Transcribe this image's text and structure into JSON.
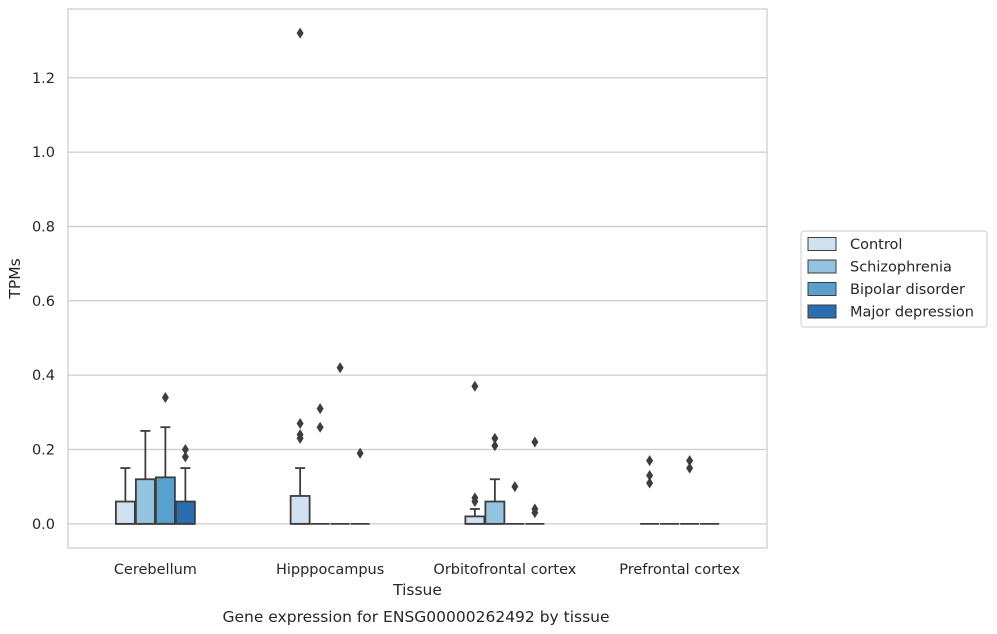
{
  "caption": "Gene expression for ENSG00000262492 by tissue",
  "chart_data": {
    "type": "box",
    "xlabel": "Tissue",
    "ylabel": "TPMs",
    "ylim": [
      -0.065,
      1.385
    ],
    "yticks": [
      0.0,
      0.2,
      0.4,
      0.6,
      0.8,
      1.0,
      1.2
    ],
    "ytick_labels": [
      "0.0",
      "0.2",
      "0.4",
      "0.6",
      "0.8",
      "1.0",
      "1.2"
    ],
    "grid": "horizontal",
    "legend_placement": "outside-right",
    "categories": [
      "Cerebellum",
      "Hipppocampus",
      "Orbitofrontal cortex",
      "Prefrontal cortex"
    ],
    "series": [
      {
        "name": "Control",
        "color": "#d0e1f2",
        "boxes": [
          {
            "q1": 0.0,
            "median": 0.0,
            "q3": 0.06,
            "whisker_low": 0.0,
            "whisker_high": 0.15,
            "outliers": []
          },
          {
            "q1": 0.0,
            "median": 0.0,
            "q3": 0.075,
            "whisker_low": 0.0,
            "whisker_high": 0.15,
            "outliers": [
              1.32,
              0.27,
              0.24,
              0.23
            ]
          },
          {
            "q1": 0.0,
            "median": 0.0,
            "q3": 0.02,
            "whisker_low": 0.0,
            "whisker_high": 0.04,
            "outliers": [
              0.37,
              0.07,
              0.06
            ]
          },
          {
            "q1": 0.0,
            "median": 0.0,
            "q3": 0.0,
            "whisker_low": 0.0,
            "whisker_high": 0.0,
            "outliers": [
              0.17,
              0.13,
              0.11
            ]
          }
        ]
      },
      {
        "name": "Schizophrenia",
        "color": "#94c4df",
        "boxes": [
          {
            "q1": 0.0,
            "median": 0.0,
            "q3": 0.12,
            "whisker_low": 0.0,
            "whisker_high": 0.25,
            "outliers": []
          },
          {
            "q1": 0.0,
            "median": 0.0,
            "q3": 0.0,
            "whisker_low": 0.0,
            "whisker_high": 0.0,
            "outliers": [
              0.31,
              0.26
            ]
          },
          {
            "q1": 0.0,
            "median": 0.0,
            "q3": 0.06,
            "whisker_low": 0.0,
            "whisker_high": 0.12,
            "outliers": [
              0.23,
              0.21
            ]
          },
          {
            "q1": 0.0,
            "median": 0.0,
            "q3": 0.0,
            "whisker_low": 0.0,
            "whisker_high": 0.0,
            "outliers": []
          }
        ]
      },
      {
        "name": "Bipolar disorder",
        "color": "#5aa0cd",
        "boxes": [
          {
            "q1": 0.0,
            "median": 0.0,
            "q3": 0.125,
            "whisker_low": 0.0,
            "whisker_high": 0.26,
            "outliers": [
              0.34
            ]
          },
          {
            "q1": 0.0,
            "median": 0.0,
            "q3": 0.0,
            "whisker_low": 0.0,
            "whisker_high": 0.0,
            "outliers": [
              0.42
            ]
          },
          {
            "q1": 0.0,
            "median": 0.0,
            "q3": 0.0,
            "whisker_low": 0.0,
            "whisker_high": 0.0,
            "outliers": [
              0.1
            ]
          },
          {
            "q1": 0.0,
            "median": 0.0,
            "q3": 0.0,
            "whisker_low": 0.0,
            "whisker_high": 0.0,
            "outliers": [
              0.17,
              0.15
            ]
          }
        ]
      },
      {
        "name": "Major depression",
        "color": "#2a6eb0",
        "boxes": [
          {
            "q1": 0.0,
            "median": 0.0,
            "q3": 0.06,
            "whisker_low": 0.0,
            "whisker_high": 0.15,
            "outliers": [
              0.2,
              0.18
            ]
          },
          {
            "q1": 0.0,
            "median": 0.0,
            "q3": 0.0,
            "whisker_low": 0.0,
            "whisker_high": 0.0,
            "outliers": [
              0.19
            ]
          },
          {
            "q1": 0.0,
            "median": 0.0,
            "q3": 0.0,
            "whisker_low": 0.0,
            "whisker_high": 0.0,
            "outliers": [
              0.22,
              0.04,
              0.03
            ]
          },
          {
            "q1": 0.0,
            "median": 0.0,
            "q3": 0.0,
            "whisker_low": 0.0,
            "whisker_high": 0.0,
            "outliers": []
          }
        ]
      }
    ]
  }
}
